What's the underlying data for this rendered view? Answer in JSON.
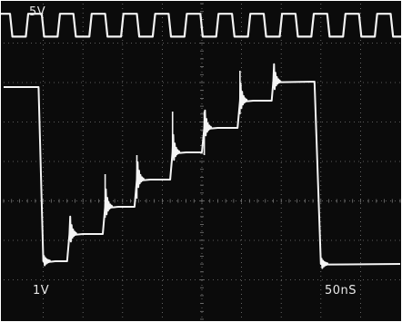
{
  "chart_data": {
    "type": "line",
    "colors": {
      "background": "#0b0b0b",
      "graticule": "#7a7a7a",
      "trace": "#f4f4f4",
      "frame": "#ffffff"
    },
    "grid": true,
    "divisions": {
      "x": 10,
      "y": 8
    },
    "labels": {
      "ch1_scale": "5V",
      "ch2_scale": "1V",
      "timebase": "50nS"
    },
    "series": [
      {
        "channel": "ch1",
        "volts_per_div": 5,
        "ns_per_div": 50,
        "waveform": "square",
        "period_ns": 40,
        "ylim": [
          0,
          5
        ],
        "points": [
          [
            0,
            0.6
          ],
          [
            3,
            4.8
          ],
          [
            20,
            4.8
          ],
          [
            23,
            0.6
          ],
          [
            40,
            0.6
          ]
        ]
      },
      {
        "channel": "ch2",
        "volts_per_div": 1,
        "ns_per_div": 50,
        "waveform": "staircase",
        "xlim": [
          0,
          500
        ],
        "ylim": [
          0,
          8
        ],
        "points": [
          [
            0,
            6.8
          ],
          [
            44,
            6.8
          ],
          [
            50,
            0.4
          ],
          [
            65,
            0.4
          ],
          [
            80,
            0.4
          ],
          [
            83,
            1.4
          ],
          [
            100,
            1.4
          ],
          [
            125,
            1.4
          ],
          [
            128,
            2.4
          ],
          [
            145,
            2.4
          ],
          [
            165,
            2.4
          ],
          [
            168,
            3.4
          ],
          [
            185,
            3.4
          ],
          [
            210,
            3.4
          ],
          [
            213,
            4.4
          ],
          [
            230,
            4.4
          ],
          [
            250,
            4.4
          ],
          [
            253,
            5.3
          ],
          [
            270,
            5.3
          ],
          [
            295,
            5.3
          ],
          [
            298,
            6.3
          ],
          [
            315,
            6.3
          ],
          [
            338,
            6.3
          ],
          [
            340,
            7.0
          ],
          [
            392,
            7.0
          ],
          [
            400,
            0.3
          ],
          [
            500,
            0.3
          ]
        ]
      }
    ]
  }
}
